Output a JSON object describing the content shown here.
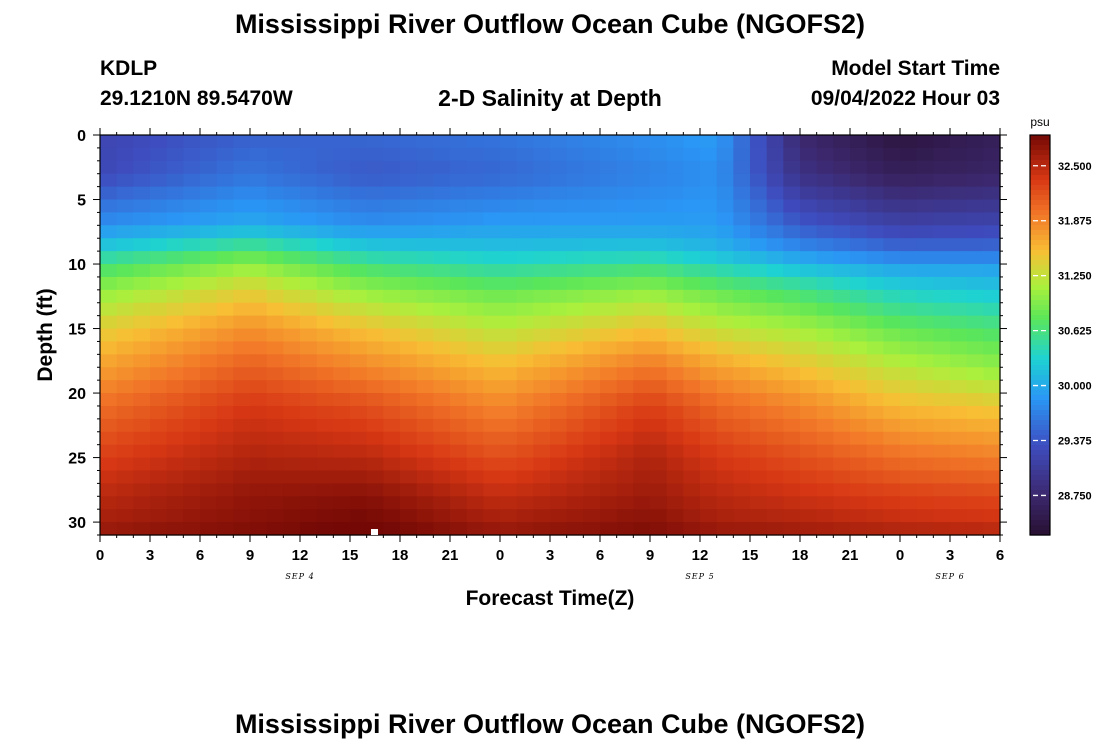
{
  "header": {
    "title": "Mississippi River Outflow Ocean Cube (NGOFS2)",
    "station_id": "KDLP",
    "station_coords": "29.1210N  89.5470W",
    "plot_subtitle": "2-D Salinity at Depth",
    "model_start_label": "Model Start Time",
    "model_start_value": "09/04/2022 Hour 03"
  },
  "footer": {
    "title": "Mississippi River Outflow Ocean Cube (NGOFS2)"
  },
  "chart_data": {
    "type": "heatmap",
    "title": "2-D Salinity at Depth",
    "xlabel": "Forecast Time(Z)",
    "ylabel": "Depth (ft)",
    "x_tick_labels": [
      "0",
      "3",
      "6",
      "9",
      "12",
      "15",
      "18",
      "21",
      "0",
      "3",
      "6",
      "9",
      "12",
      "15",
      "18",
      "21",
      "0",
      "3",
      "6"
    ],
    "date_labels": [
      {
        "label": "SEP 4",
        "at_hour": 12
      },
      {
        "label": "SEP 5",
        "at_hour": 36
      },
      {
        "label": "SEP 6",
        "at_hour": 51
      }
    ],
    "xlim": [
      0,
      54
    ],
    "y_ticks": [
      0,
      5,
      10,
      15,
      20,
      25,
      30
    ],
    "ylim": [
      0,
      31
    ],
    "y_inverted": true,
    "colorbar": {
      "unit": "psu",
      "ticks": [
        "32.500",
        "31.875",
        "31.250",
        "30.625",
        "30.000",
        "29.375",
        "28.750"
      ],
      "range": [
        28.3,
        32.85
      ]
    },
    "hours": [
      0,
      9,
      16,
      24,
      33,
      37,
      42,
      48,
      54
    ],
    "depths": [
      0,
      3,
      7,
      9,
      10,
      12,
      15,
      18,
      21,
      25,
      28,
      30,
      31
    ],
    "salinity": [
      [
        29.2,
        29.45,
        29.5,
        29.6,
        29.8,
        29.9,
        28.75,
        28.4,
        28.6
      ],
      [
        29.25,
        29.6,
        29.4,
        29.5,
        29.7,
        29.8,
        28.9,
        28.6,
        28.7
      ],
      [
        29.8,
        30.0,
        29.8,
        29.9,
        29.9,
        29.9,
        29.4,
        29.15,
        29.2
      ],
      [
        30.3,
        30.7,
        30.3,
        30.2,
        30.25,
        30.1,
        29.8,
        29.55,
        29.55
      ],
      [
        30.6,
        31.0,
        30.6,
        30.4,
        30.55,
        30.35,
        30.1,
        29.9,
        29.9
      ],
      [
        31.0,
        31.4,
        31.0,
        30.8,
        31.0,
        30.8,
        30.6,
        30.3,
        30.2
      ],
      [
        31.4,
        31.8,
        31.5,
        31.2,
        31.5,
        31.25,
        31.1,
        30.8,
        30.65
      ],
      [
        31.7,
        32.1,
        31.85,
        31.55,
        31.95,
        31.7,
        31.5,
        31.2,
        31.0
      ],
      [
        32.0,
        32.35,
        32.2,
        31.85,
        32.3,
        32.05,
        31.85,
        31.55,
        31.45
      ],
      [
        32.3,
        32.55,
        32.5,
        32.2,
        32.55,
        32.35,
        32.2,
        32.0,
        31.9
      ],
      [
        32.5,
        32.7,
        32.75,
        32.45,
        32.65,
        32.5,
        32.4,
        32.3,
        32.25
      ],
      [
        32.6,
        32.75,
        32.85,
        32.6,
        32.75,
        32.6,
        32.55,
        32.45,
        32.4
      ],
      [
        32.7,
        32.8,
        32.9,
        32.7,
        32.8,
        32.7,
        32.65,
        32.6,
        32.55
      ]
    ]
  }
}
